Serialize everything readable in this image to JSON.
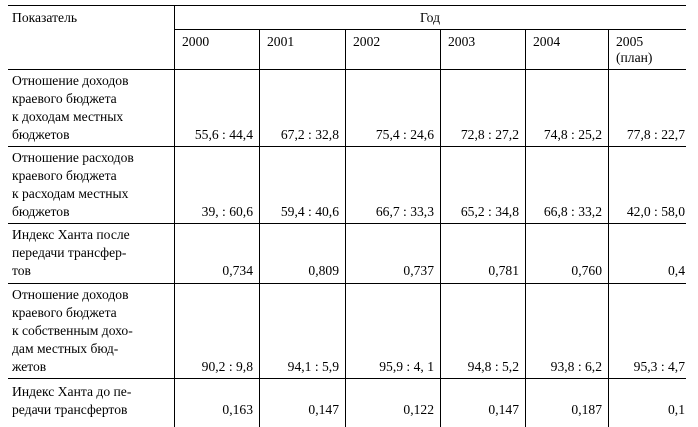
{
  "table": {
    "header": {
      "indicator_label": "Показатель",
      "year_group_label": "Год",
      "years": [
        {
          "label": "2000"
        },
        {
          "label": "2001"
        },
        {
          "label": "2002"
        },
        {
          "label": "2003"
        },
        {
          "label": "2004"
        },
        {
          "label": "2005",
          "note": "(план)"
        }
      ]
    },
    "rows": [
      {
        "label_lines": [
          "Отношение доходов",
          "краевого бюджета",
          "к доходам местных",
          "бюджетов"
        ],
        "values": [
          "55,6 : 44,4",
          "67,2 : 32,8",
          "75,4 : 24,6",
          "72,8 : 27,2",
          "74,8 : 25,2",
          "77,8 : 22,7"
        ]
      },
      {
        "label_lines": [
          "Отношение расходов",
          "краевого бюджета",
          "к расходам местных",
          "бюджетов"
        ],
        "values": [
          "39, : 60,6",
          "59,4 : 40,6",
          "66,7 : 33,3",
          "65,2 : 34,8",
          "66,8 : 33,2",
          "42,0 : 58,0"
        ]
      },
      {
        "label_lines": [
          "Индекс Ханта после",
          "передачи трансфер-",
          "тов"
        ],
        "values": [
          "0,734",
          "0,809",
          "0,737",
          "0,781",
          "0,760",
          "0,4"
        ]
      },
      {
        "label_lines": [
          "Отношение доходов",
          "краевого бюджета",
          "к собственным дохо-",
          "дам местных бюд-",
          "жетов"
        ],
        "values": [
          "90,2 : 9,8",
          "94,1 : 5,9",
          "95,9 : 4, 1",
          "94,8 : 5,2",
          "93,8 : 6,2",
          "95,3 : 4,7"
        ]
      },
      {
        "label_lines": [
          "Индекс Ханта до пе-",
          "редачи трансфертов"
        ],
        "values": [
          "0,163",
          "0,147",
          "0,122",
          "0,147",
          "0,187",
          "0,1"
        ]
      }
    ]
  }
}
